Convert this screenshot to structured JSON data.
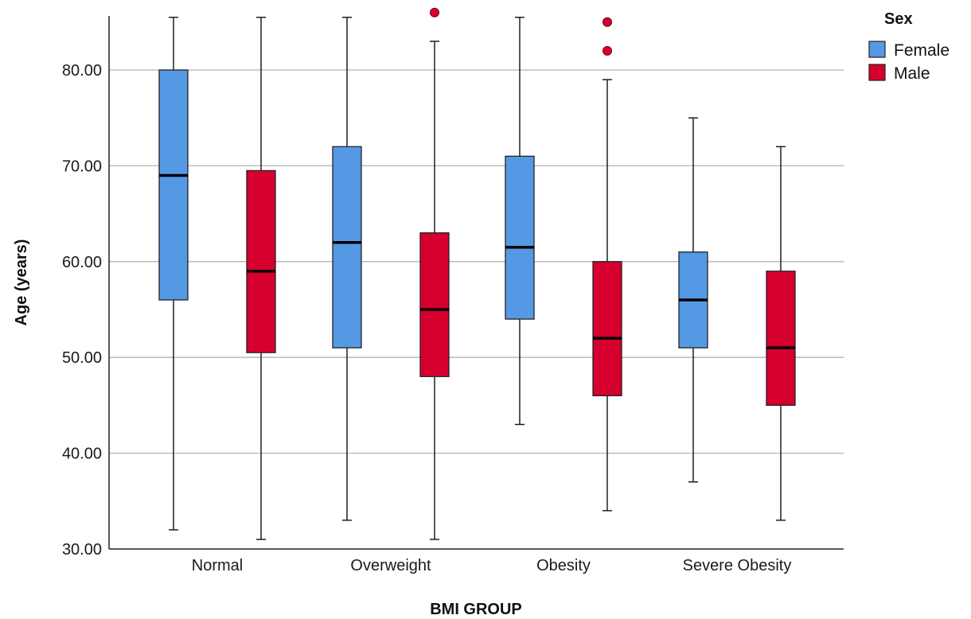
{
  "chart_data": {
    "type": "boxplot",
    "xlabel": "BMI GROUP",
    "ylabel": "Age (years)",
    "ylim": [
      30,
      86
    ],
    "yticks": [
      30,
      40,
      50,
      60,
      70,
      80
    ],
    "ytick_labels": [
      "30.00",
      "40.00",
      "50.00",
      "60.00",
      "70.00",
      "80.00"
    ],
    "grid": "horizontal",
    "categories": [
      "Normal",
      "Overweight",
      "Obesity",
      "Severe Obesity"
    ],
    "legend": {
      "title": "Sex",
      "position": "top-right"
    },
    "series": [
      {
        "name": "Female",
        "color": "#5599e4",
        "boxes": [
          {
            "whisker_low": 32,
            "q1": 56,
            "median": 69,
            "q3": 80,
            "whisker_high": 85.5,
            "outliers": []
          },
          {
            "whisker_low": 33,
            "q1": 51,
            "median": 62,
            "q3": 72,
            "whisker_high": 85.5,
            "outliers": []
          },
          {
            "whisker_low": 43,
            "q1": 54,
            "median": 61.5,
            "q3": 71,
            "whisker_high": 85.5,
            "outliers": []
          },
          {
            "whisker_low": 37,
            "q1": 51,
            "median": 56,
            "q3": 61,
            "whisker_high": 75,
            "outliers": []
          }
        ]
      },
      {
        "name": "Male",
        "color": "#d6002f",
        "boxes": [
          {
            "whisker_low": 31,
            "q1": 50.5,
            "median": 59,
            "q3": 69.5,
            "whisker_high": 85.5,
            "outliers": []
          },
          {
            "whisker_low": 31,
            "q1": 48,
            "median": 55,
            "q3": 63,
            "whisker_high": 83,
            "outliers": [
              86
            ]
          },
          {
            "whisker_low": 34,
            "q1": 46,
            "median": 52,
            "q3": 60,
            "whisker_high": 79,
            "outliers": [
              82,
              85
            ]
          },
          {
            "whisker_low": 33,
            "q1": 45,
            "median": 51,
            "q3": 59,
            "whisker_high": 72,
            "outliers": []
          }
        ]
      }
    ]
  }
}
